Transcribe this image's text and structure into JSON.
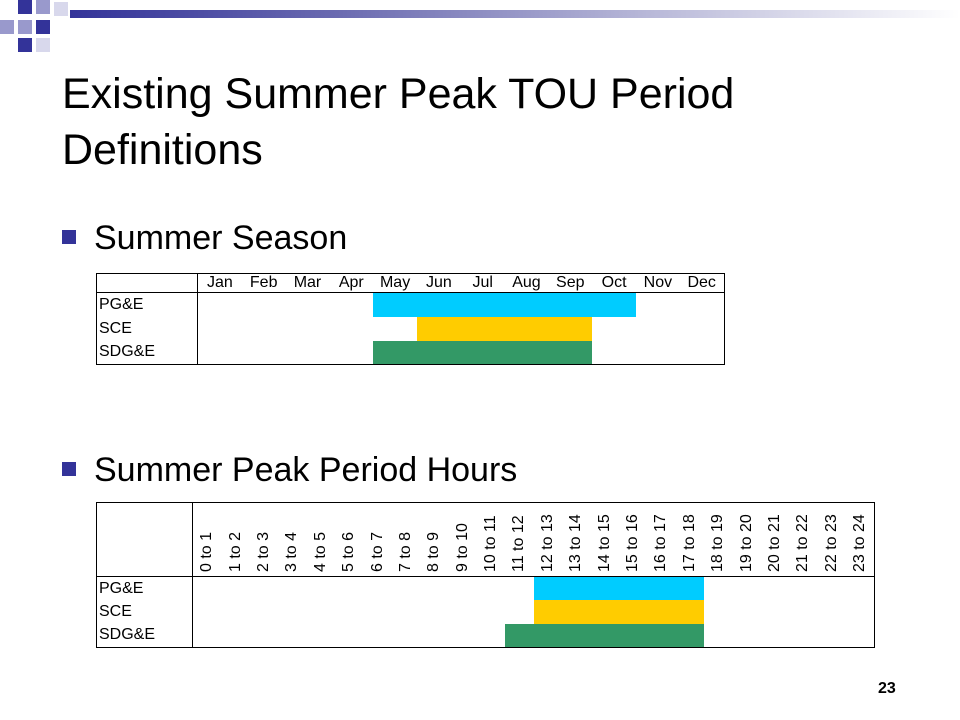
{
  "title": "Existing Summer Peak TOU Period Definitions",
  "bullets": [
    "Summer Season",
    "Summer Peak Period Hours"
  ],
  "colors": {
    "accent": "#333399",
    "pge": "#00CCFF",
    "sce": "#FFCC00",
    "sdge": "#339966"
  },
  "season_table": {
    "months": [
      "Jan",
      "Feb",
      "Mar",
      "Apr",
      "May",
      "Jun",
      "Jul",
      "Aug",
      "Sep",
      "Oct",
      "Nov",
      "Dec"
    ],
    "rows": [
      {
        "utility": "PG&E",
        "start": 4,
        "end": 9,
        "color": "#00CCFF"
      },
      {
        "utility": "SCE",
        "start": 5,
        "end": 8,
        "color": "#FFCC00"
      },
      {
        "utility": "SDG&E",
        "start": 4,
        "end": 8,
        "color": "#339966"
      }
    ]
  },
  "hours_table": {
    "hours": [
      "0 to 1",
      "1 to 2",
      "2 to 3",
      "3 to 4",
      "4 to 5",
      "5 to 6",
      "6 to 7",
      "7 to 8",
      "8 to 9",
      "9 to 10",
      "10 to 11",
      "11 to 12",
      "12 to 13",
      "13 to 14",
      "14 to 15",
      "15 to 16",
      "16 to 17",
      "17 to 18",
      "18 to 19",
      "19 to 20",
      "20 to 21",
      "21 to 22",
      "22 to 23",
      "23 to 24"
    ],
    "rows": [
      {
        "utility": "PG&E",
        "start": 12,
        "end": 17,
        "color": "#00CCFF"
      },
      {
        "utility": "SCE",
        "start": 12,
        "end": 17,
        "color": "#FFCC00"
      },
      {
        "utility": "SDG&E",
        "start": 11,
        "end": 17,
        "color": "#339966"
      }
    ]
  },
  "page_number": "23"
}
